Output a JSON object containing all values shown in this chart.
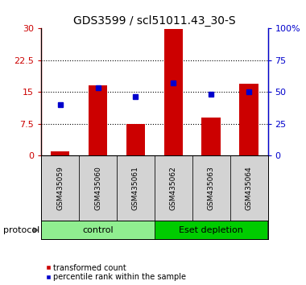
{
  "title": "GDS3599 / scl51011.43_30-S",
  "samples": [
    "GSM435059",
    "GSM435060",
    "GSM435061",
    "GSM435062",
    "GSM435063",
    "GSM435064"
  ],
  "bar_values": [
    1.0,
    16.5,
    7.5,
    29.8,
    9.0,
    17.0
  ],
  "percentile_values": [
    40,
    53,
    46,
    57,
    48,
    50
  ],
  "bar_color": "#CC0000",
  "blue_color": "#0000CC",
  "ylim_left": [
    0,
    30
  ],
  "ylim_right": [
    0,
    100
  ],
  "yticks_left": [
    0,
    7.5,
    15,
    22.5,
    30
  ],
  "ytick_labels_left": [
    "0",
    "7.5",
    "15",
    "22.5",
    "30"
  ],
  "yticks_right": [
    0,
    25,
    50,
    75,
    100
  ],
  "ytick_labels_right": [
    "0",
    "25",
    "50",
    "75",
    "100%"
  ],
  "groups": [
    {
      "label": "control",
      "start": 0,
      "end": 3,
      "color": "#90EE90"
    },
    {
      "label": "Eset depletion",
      "start": 3,
      "end": 6,
      "color": "#00CC00"
    }
  ],
  "group_label": "protocol",
  "legend_items": [
    {
      "label": "transformed count",
      "color": "#CC0000"
    },
    {
      "label": "percentile rank within the sample",
      "color": "#0000CC"
    }
  ],
  "tick_area_color": "#D3D3D3",
  "bar_width": 0.5,
  "title_fontsize": 10
}
